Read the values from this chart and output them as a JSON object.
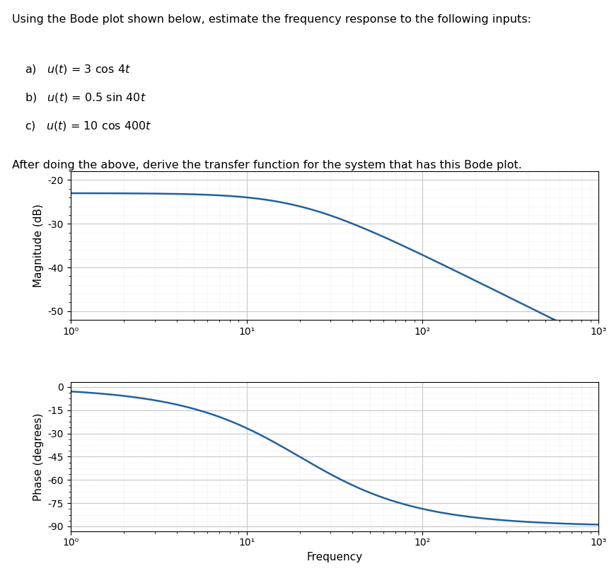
{
  "title_text": "Using the Bode plot shown below, estimate the frequency response to the following inputs:",
  "item_a": "a)   u(t) = 3 cos 4t",
  "item_b": "b)   u(t) = 0.5 sin 40t",
  "item_c": "c)   u(t) = 10 cos 400t",
  "footer_text": "After doing the above, derive the transfer function for the system that has this Bode plot.",
  "transfer_function": {
    "K": 0.0708,
    "wc": 20.0
  },
  "freq_range": [
    1.0,
    1000.0
  ],
  "mag_ylim": [
    -52,
    -18
  ],
  "mag_yticks": [
    -50,
    -40,
    -30,
    -20
  ],
  "phase_ylim": [
    -93,
    3
  ],
  "phase_yticks": [
    -90,
    -75,
    -60,
    -45,
    -30,
    -15,
    0
  ],
  "xticks": [
    1,
    10,
    100,
    1000
  ],
  "xticklabels": [
    "10⁰",
    "10¹",
    "10²",
    "10³"
  ],
  "xlabel": "Frequency",
  "mag_ylabel": "Magnitude (dB)",
  "phase_ylabel": "Phase (degrees)",
  "line_color": "#2060a0",
  "line_width": 1.8,
  "grid_major_color": "#c8c8c8",
  "grid_minor_color": "#e0e0e0",
  "background_color": "#ffffff",
  "figure_background": "#ffffff",
  "text_color": "#000000",
  "font_family": "Arial",
  "font_size_title": 11.5,
  "font_size_items": 11.5,
  "font_size_footer": 11.5,
  "font_size_axis_label": 11,
  "font_size_tick": 10
}
